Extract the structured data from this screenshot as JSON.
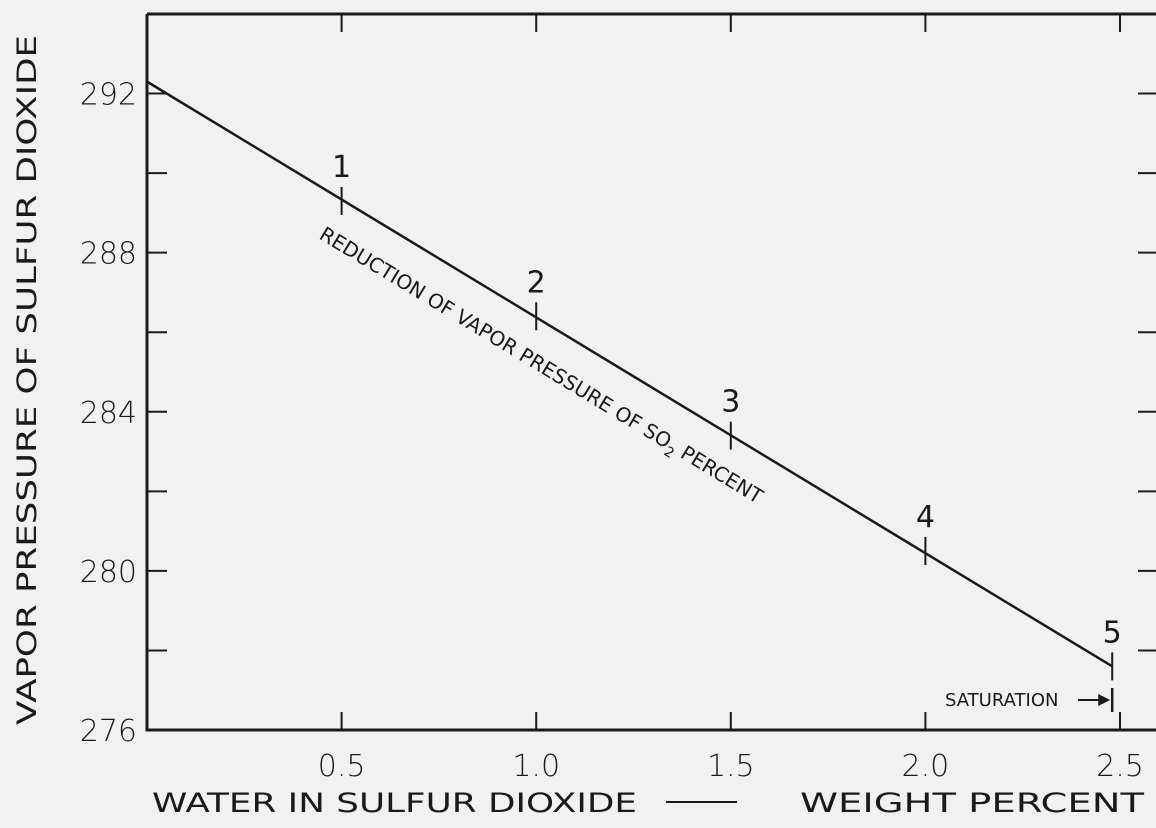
{
  "chart_data": {
    "type": "line",
    "xlabel": "WATER IN SULFUR DIOXIDE",
    "xlabel_unit": "WEIGHT PERCENT",
    "ylabel": "VAPOR PRESSURE OF SULFUR DIOXIDE",
    "xlim": [
      0,
      2.5
    ],
    "ylim": [
      276,
      294
    ],
    "x_ticks": [
      0.5,
      1.0,
      1.5,
      2.0,
      2.5
    ],
    "x_tick_labels": [
      "0.5",
      "1.0",
      "1.5",
      "2.0",
      "2.5"
    ],
    "y_ticks": [
      276,
      278,
      280,
      282,
      284,
      286,
      288,
      290,
      292
    ],
    "y_tick_labels": [
      "276",
      "",
      "280",
      "",
      "284",
      "",
      "288",
      "",
      "292"
    ],
    "series": [
      {
        "x": [
          0,
          2.48
        ],
        "y": [
          292.3,
          277.6
        ]
      }
    ],
    "points": [
      {
        "label": "1",
        "x": 0.5,
        "y": 289.3
      },
      {
        "label": "2",
        "x": 1.0,
        "y": 286.4
      },
      {
        "label": "3",
        "x": 1.5,
        "y": 283.4
      },
      {
        "label": "4",
        "x": 2.0,
        "y": 280.5
      },
      {
        "label": "5",
        "x": 2.48,
        "y": 277.6
      }
    ],
    "annotation": "REDUCTION OF VAPOR PRESSURE OF SO",
    "annotation_subscript": "2",
    "annotation_end": " PERCENT",
    "saturation_label": "SATURATION",
    "saturation_x": 2.48,
    "grid": false
  }
}
